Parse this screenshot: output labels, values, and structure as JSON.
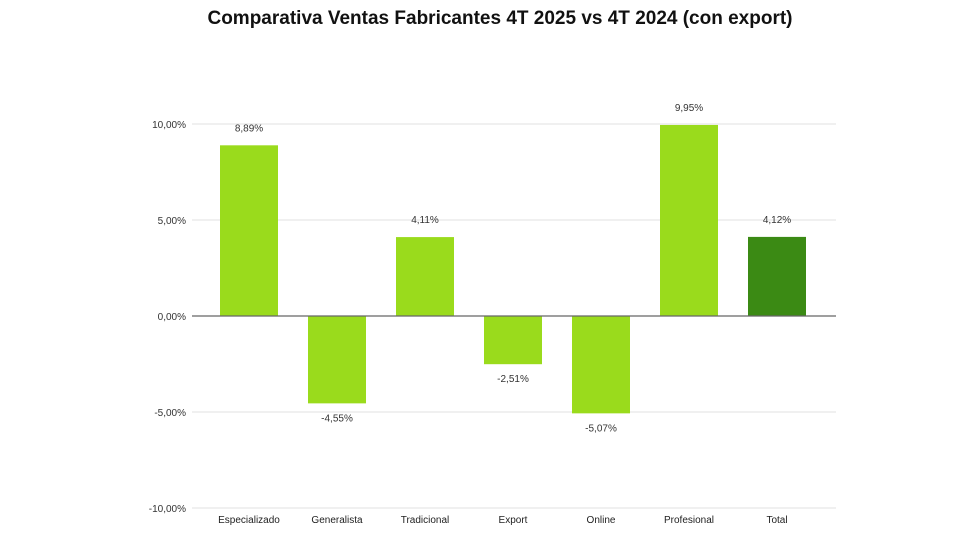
{
  "chart_data": {
    "type": "bar",
    "title": "Comparativa Ventas Fabricantes 4T 2025 vs 4T 2024 (con export)",
    "categories": [
      "Especializado",
      "Generalista",
      "Tradicional",
      "Export",
      "Online",
      "Profesional",
      "Total"
    ],
    "values": [
      8.89,
      -4.55,
      4.11,
      -2.51,
      -5.07,
      9.95,
      4.12
    ],
    "data_labels": [
      "8,89%",
      "-4,55%",
      "4,11%",
      "-2,51%",
      "-5,07%",
      "9,95%",
      "4,12%"
    ],
    "ylim": [
      -10,
      10
    ],
    "yticks": [
      10,
      5,
      0,
      -5,
      -10
    ],
    "ytick_labels": [
      "10,00%",
      "5,00%",
      "0,00%",
      "-5,00%",
      "-10,00%"
    ],
    "xlabel": "",
    "ylabel": "",
    "grid": true,
    "colors": {
      "default": "#9ADB1C",
      "total": "#3B8A14",
      "grid": "#e0e0e0",
      "zero": "#666666"
    }
  }
}
